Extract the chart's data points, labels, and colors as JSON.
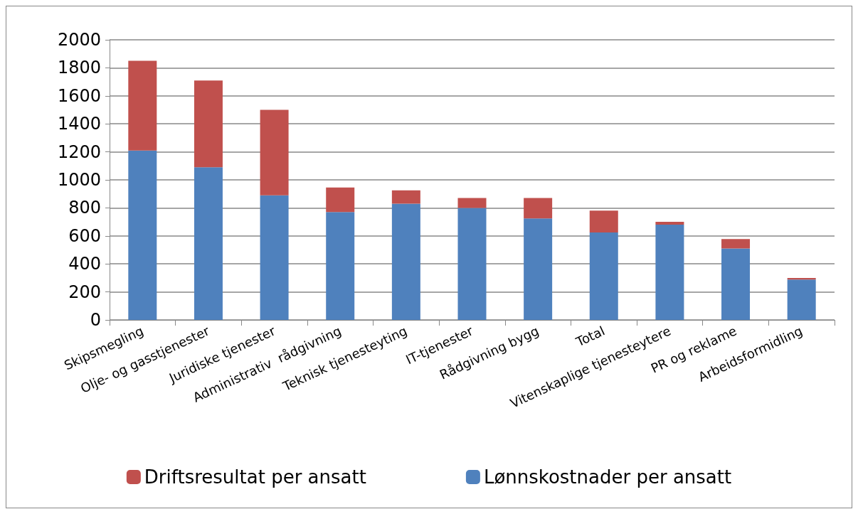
{
  "chart_data": {
    "type": "bar",
    "stacked": true,
    "categories": [
      "Skipsmegling",
      "Olje- og gasstjenester",
      "Juridiske tjenester",
      "Administrativ  rådgivning",
      "Teknisk tjenesteyting",
      "IT-tjenester",
      "Rådgivning bygg",
      "Total",
      "Vitenskaplige tjenesteytere",
      "PR og reklame",
      "Arbeidsformidling"
    ],
    "series": [
      {
        "name": "Lønnskostnader per ansatt",
        "color": "#4f81bd",
        "values": [
          1210,
          1090,
          890,
          770,
          830,
          800,
          725,
          625,
          680,
          510,
          288
        ]
      },
      {
        "name": "Driftsresultat per ansatt",
        "color": "#c0504d",
        "values": [
          640,
          620,
          610,
          175,
          95,
          70,
          145,
          155,
          20,
          68,
          12
        ]
      }
    ],
    "ylim": [
      0,
      2000
    ],
    "yticks": [
      0,
      200,
      400,
      600,
      800,
      1000,
      1200,
      1400,
      1600,
      1800,
      2000
    ],
    "grid": "y",
    "legend": "bottom"
  }
}
